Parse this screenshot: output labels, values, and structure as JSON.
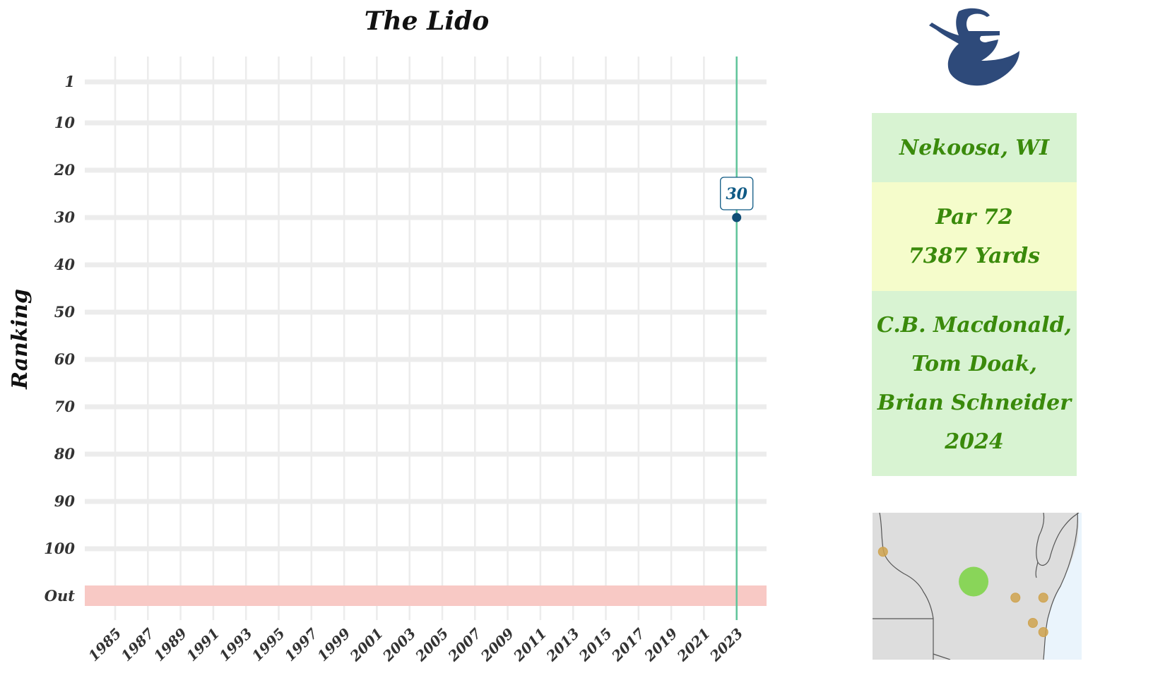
{
  "colors": {
    "grid": "#ececec",
    "out_band": "#f8c9c5",
    "vline": "#5fc49a",
    "point": "#0f4d75",
    "label_text": "#0f5a85",
    "info_text": "#3a8a0b",
    "box_green": "#d8f3d2",
    "box_yellow": "#f5fccb",
    "logo": "#2e4a7a",
    "map_land": "#dddddd",
    "map_water": "#eaf4fc",
    "map_border": "#555555",
    "map_dot_other": "#cfa34f",
    "map_dot_main": "#7fd44a"
  },
  "chart_data": {
    "type": "scatter",
    "title": "The Lido",
    "xlabel": "",
    "ylabel": "Ranking",
    "x_ticks": [
      "1985",
      "1987",
      "1989",
      "1991",
      "1993",
      "1995",
      "1997",
      "1999",
      "2001",
      "2003",
      "2005",
      "2007",
      "2009",
      "2011",
      "2013",
      "2015",
      "2017",
      "2019",
      "2021",
      "2023"
    ],
    "x_range": [
      1985,
      2023
    ],
    "y_ticks": [
      "1",
      "10",
      "20",
      "30",
      "40",
      "50",
      "60",
      "70",
      "80",
      "90",
      "100",
      "Out"
    ],
    "y_reversed": true,
    "grid": true,
    "highlight_year": 2023,
    "points": [
      {
        "x": 2023,
        "y": 30,
        "label": "30"
      }
    ]
  },
  "info": {
    "location": "Nekoosa, WI",
    "par": "Par 72",
    "yards": "7387 Yards",
    "architects": [
      "C.B. Macdonald,",
      "Tom Doak,",
      "Brian Schneider",
      "2024"
    ]
  },
  "logo": {
    "icon": "mermaid-icon"
  },
  "map": {
    "icon": "wisconsin-map",
    "main_dot": {
      "lon": -89.9,
      "lat": 44.3
    },
    "other_dots": [
      {
        "lon": -92.5,
        "lat": 44.95
      },
      {
        "lon": -88.7,
        "lat": 43.95
      },
      {
        "lon": -87.9,
        "lat": 43.95
      },
      {
        "lon": -88.2,
        "lat": 43.4
      },
      {
        "lon": -87.9,
        "lat": 43.2
      }
    ]
  }
}
